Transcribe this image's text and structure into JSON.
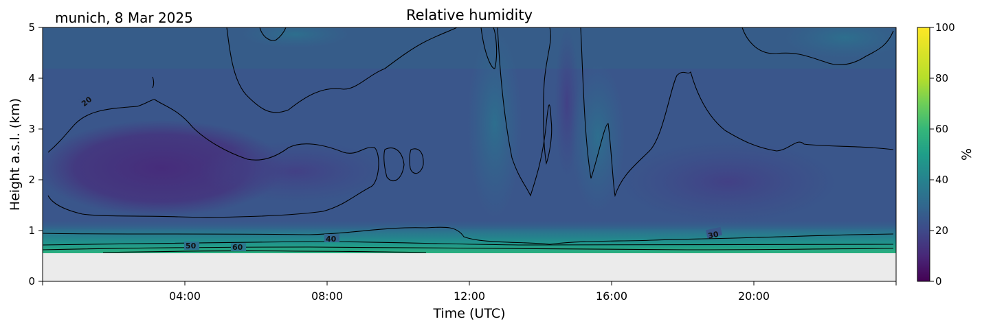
{
  "header": {
    "location_date": "munich, 8 Mar 2025",
    "title": "Relative humidity"
  },
  "chart_data": {
    "type": "heatmap",
    "title": "Relative humidity",
    "xlabel": "Time (UTC)",
    "ylabel": "Height a.s.l. (km)",
    "xlim": [
      0,
      24
    ],
    "ylim": [
      0,
      5
    ],
    "x_ticks": [
      "04:00",
      "08:00",
      "12:00",
      "16:00",
      "20:00"
    ],
    "x_tick_hours": [
      4,
      8,
      12,
      16,
      20
    ],
    "y_ticks": [
      "0",
      "1",
      "2",
      "3",
      "4",
      "5"
    ],
    "data_min_height_km": 0.55,
    "no_data_color": "#ebebeb",
    "colorbar": {
      "label": "%",
      "min": 0,
      "max": 100,
      "ticks": [
        "0",
        "20",
        "40",
        "60",
        "80",
        "100"
      ],
      "colormap": "viridis"
    },
    "contour_labels": [
      {
        "text": "20",
        "hour": 1.2,
        "km": 3.5
      },
      {
        "text": "50",
        "hour": 4.2,
        "km": 0.72
      },
      {
        "text": "60",
        "hour": 5.5,
        "km": 0.7
      },
      {
        "text": "40",
        "hour": 8.1,
        "km": 0.84
      },
      {
        "text": "30",
        "hour": 18.9,
        "km": 0.92
      }
    ],
    "grid": false
  }
}
